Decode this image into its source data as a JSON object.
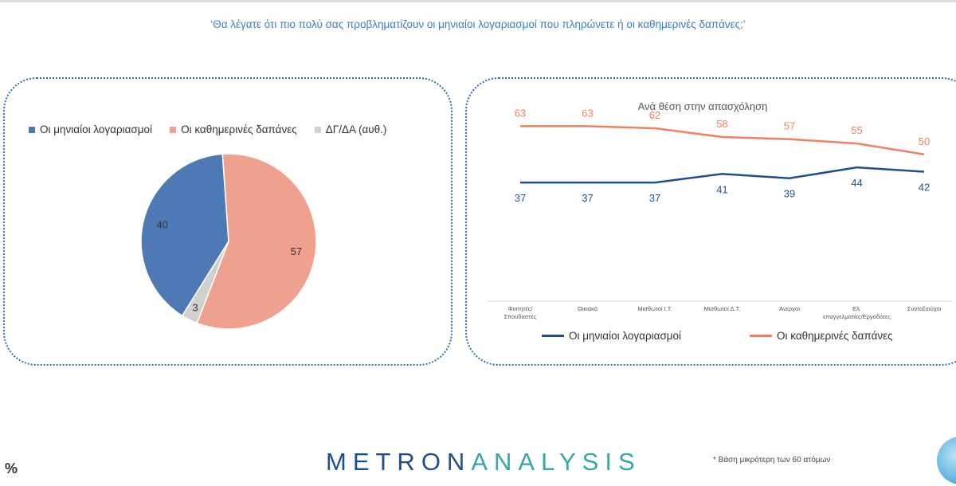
{
  "question": "‘Θα λέγατε ότι πιο πολύ σας προβληματίζουν οι μηνιαίοι λογαριασμοί που πληρώνετε ή οι καθημερινές δαπάνες;’",
  "percent_label": "%",
  "logo": {
    "part1": "METRON",
    "part2": "ANALYSIS"
  },
  "footnote": "* Βάση μικρότερη των 60 ατόμων",
  "colors": {
    "monthly_bills": "#4f79b5",
    "daily_expenses": "#f0a08e",
    "dk_na": "#d0d0d0",
    "line_monthly": "#1f4f8f",
    "line_daily": "#ef8060",
    "frame": "#2f6db3"
  },
  "chart_data": [
    {
      "type": "pie",
      "legend_position": "top",
      "categories": [
        "Οι μηνιαίοι λογαριασμοί",
        "Οι καθημερινές δαπάνες",
        "ΔΓ/ΔΑ (αυθ.)"
      ],
      "values": [
        40,
        57,
        3
      ]
    },
    {
      "type": "line",
      "title": "Ανά θέση στην απασχόληση",
      "legend_position": "bottom",
      "categories": [
        "Φοιτητές/ Σπουδαστές",
        "Οικιακά",
        "Μισθωτοί Ι.Τ.",
        "Μισθωτοί Δ.Τ.",
        "Άνεργοι",
        "Ελ. επαγγελματίες/Εργοδότες",
        "Συνταξιούχοι"
      ],
      "series": [
        {
          "name": "Οι μηνιαίοι λογαριασμοί",
          "values": [
            37,
            37,
            37,
            41,
            39,
            44,
            42
          ]
        },
        {
          "name": "Οι καθημερινές δαπάνες",
          "values": [
            63,
            63,
            62,
            58,
            57,
            55,
            50
          ]
        }
      ],
      "grid": false
    }
  ]
}
